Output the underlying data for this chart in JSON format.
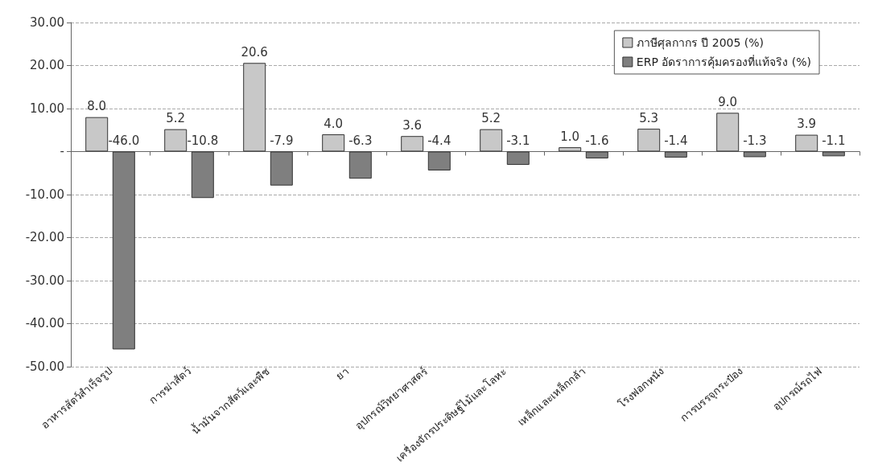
{
  "chart_data": {
    "type": "bar",
    "categories": [
      "อาหารสัตว์สำเร็จรูป",
      "การฆ่าสัตว์",
      "น้ำมันจากสัตว์และพืช",
      "ยา",
      "อุปกรณ์วิทยาศาสตร์",
      "เครื่องจักรประดิษฐ์ไม้และโลหะ",
      "เหล็กและเหล็กกล้า",
      "โรงฟอกหนัง",
      "การบรรจุกระป๋อง",
      "อุปกรณ์รถไฟ"
    ],
    "series": [
      {
        "name": "ภาษีศุลกากร ปี 2005 (%)",
        "color": "#c8c8c8",
        "values": [
          8.0,
          5.2,
          20.6,
          4.0,
          3.6,
          5.2,
          1.0,
          5.3,
          9.0,
          3.9
        ],
        "value_labels": [
          "8.0",
          "5.2",
          "20.6",
          "4.0",
          "3.6",
          "5.2",
          "1.0",
          "5.3",
          "9.0",
          "3.9"
        ]
      },
      {
        "name": "ERP อัดราการคุ้มครองที่แท้จริง (%)",
        "color": "#7f7f7f",
        "values": [
          -46.0,
          -10.8,
          -7.9,
          -6.3,
          -4.4,
          -3.1,
          -1.6,
          -1.4,
          -1.3,
          -1.1
        ],
        "value_labels": [
          "-46.0",
          "-10.8",
          "-7.9",
          "-6.3",
          "-4.4",
          "-3.1",
          "-1.6",
          "-1.4",
          "-1.3",
          "-1.1"
        ]
      }
    ],
    "ylim": [
      -50,
      30
    ],
    "yticks": [
      {
        "value": -50,
        "label": "-50.00"
      },
      {
        "value": -40,
        "label": "-40.00"
      },
      {
        "value": -30,
        "label": "-30.00"
      },
      {
        "value": -20,
        "label": "-20.00"
      },
      {
        "value": -10,
        "label": "-10.00"
      },
      {
        "value": 0,
        "label": "-"
      },
      {
        "value": 10,
        "label": "10.00"
      },
      {
        "value": 20,
        "label": "20.00"
      },
      {
        "value": 30,
        "label": "30.00"
      }
    ],
    "grid": "y",
    "legend": "top right"
  }
}
